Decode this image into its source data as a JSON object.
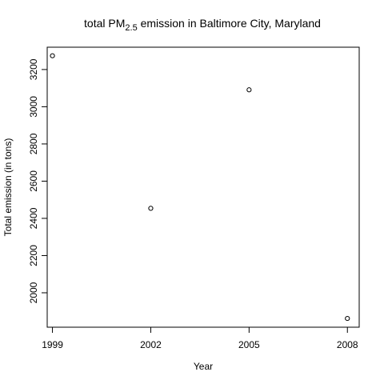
{
  "chart_data": {
    "type": "scatter",
    "title": {
      "prefix": "total PM",
      "subscript": "2.5",
      "suffix": " emission in Baltimore City, Maryland"
    },
    "xlabel": "Year",
    "ylabel": "Total emission (in tons)",
    "x": [
      1999,
      2002,
      2005,
      2008
    ],
    "y": [
      3274,
      2454,
      3091,
      1862
    ],
    "x_ticks": [
      1999,
      2002,
      2005,
      2008
    ],
    "y_ticks": [
      2000,
      2200,
      2400,
      2600,
      2800,
      3000,
      3200
    ],
    "xlim": [
      1998.84,
      2008.36
    ],
    "ylim": [
      1815,
      3320
    ],
    "marker": "open-circle",
    "grid": false,
    "colors": {
      "marker": "#000000",
      "axis": "#000000"
    }
  }
}
